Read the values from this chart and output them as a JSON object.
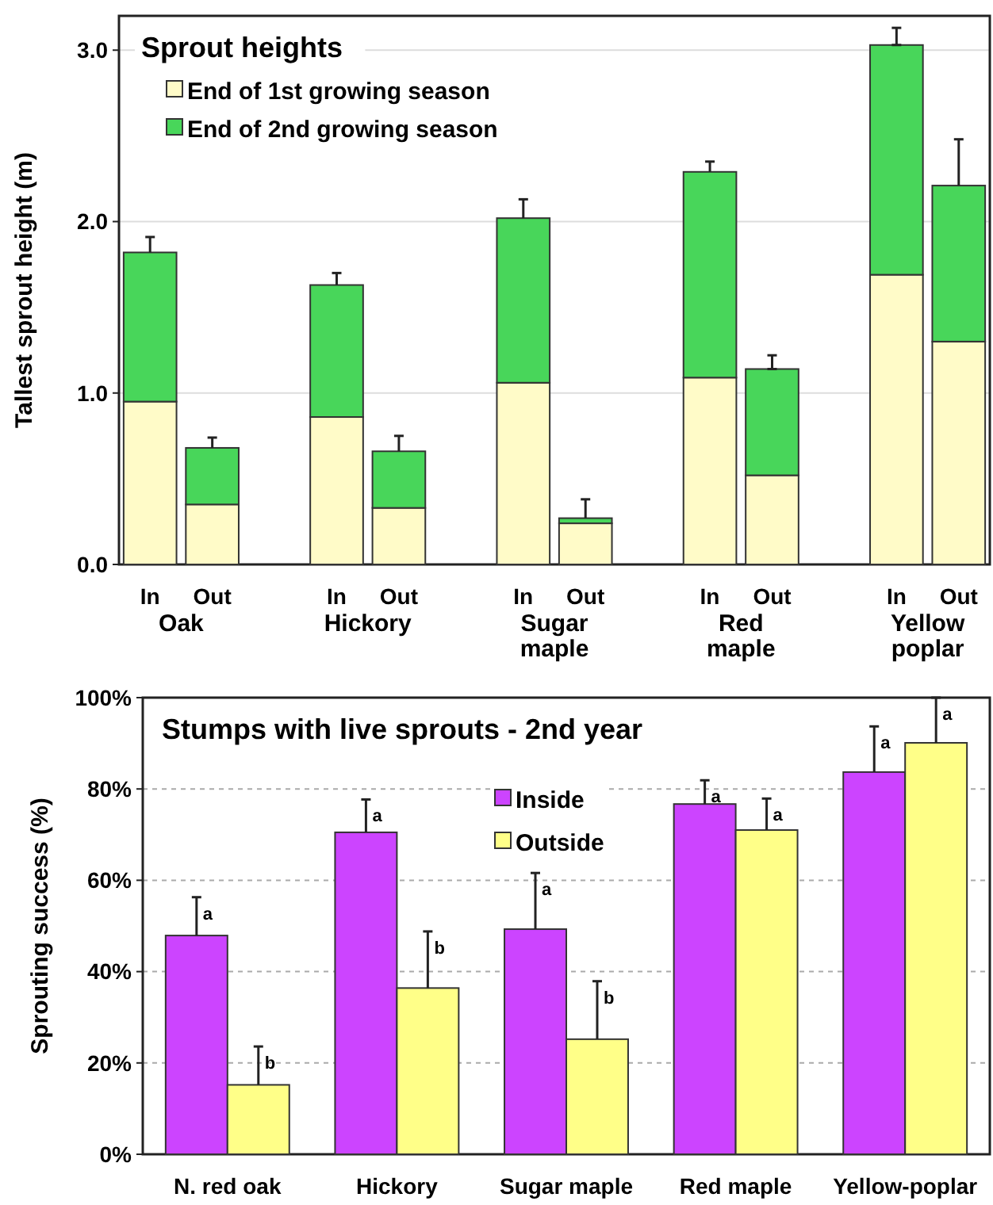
{
  "chart_data": [
    {
      "type": "bar",
      "title": "Sprout heights",
      "ylabel": "Tallest sprout height (m)",
      "stacked": true,
      "categories": [
        "In",
        "Out",
        null,
        "In",
        "Out",
        null,
        "In",
        "Out",
        null,
        "In",
        "Out",
        null,
        "In",
        "Out"
      ],
      "series": [
        {
          "name": "End of 1st growing season",
          "color": "#fffbc8",
          "values": [
            0.95,
            0.35,
            null,
            0.86,
            0.33,
            null,
            1.06,
            0.24,
            null,
            1.09,
            0.52,
            null,
            1.69,
            1.3
          ]
        },
        {
          "name": "End of 2nd growing season",
          "color": "#48d65a",
          "values": [
            0.87,
            0.33,
            null,
            0.77,
            0.33,
            null,
            0.96,
            0.03,
            null,
            1.2,
            0.62,
            null,
            1.34,
            0.91
          ],
          "errors": [
            [
              1.82,
              1.91
            ],
            [
              0.68,
              0.74
            ],
            null,
            [
              1.63,
              1.7
            ],
            [
              0.66,
              0.75
            ],
            null,
            [
              2.02,
              2.13
            ],
            [
              0.27,
              0.38
            ],
            null,
            [
              2.29,
              2.35
            ],
            [
              1.14,
              1.22
            ],
            null,
            [
              3.03,
              3.13
            ],
            [
              2.21,
              2.48
            ]
          ]
        }
      ],
      "annotations": [
        "Oak",
        "Hickory",
        "Sugar maple",
        "Red maple",
        "Yellow poplar"
      ],
      "ylim": [
        0,
        3.2
      ],
      "yticks": [
        {
          "value": 0,
          "label": "0.0"
        },
        {
          "value": 1,
          "label": "1.0"
        },
        {
          "value": 2,
          "label": "2.0"
        },
        {
          "value": 3,
          "label": "3.0"
        }
      ],
      "grid": "y",
      "legend": "top left"
    },
    {
      "type": "bar",
      "title": "Stumps with live sprouts - 2nd year",
      "ylabel": "Sprouting success (%)",
      "categories": [
        "N. red oak",
        "Hickory",
        "Sugar maple",
        "Red maple",
        "Yellow-poplar"
      ],
      "series": [
        {
          "name": "Inside",
          "color": "#cc44ff",
          "values": [
            47.9,
            70.5,
            49.3,
            76.7,
            83.7
          ],
          "errors": [
            [
              47.9,
              56.3
            ],
            [
              70.5,
              77.7
            ],
            [
              49.3,
              61.6
            ],
            [
              76.7,
              81.9
            ],
            [
              83.7,
              93.7
            ]
          ]
        },
        {
          "name": "Outside",
          "color": "#ffff88",
          "values": [
            15.2,
            36.4,
            25.2,
            71.0,
            90.1
          ],
          "errors": [
            [
              15.2,
              23.6
            ],
            [
              36.4,
              48.8
            ],
            [
              25.2,
              37.9
            ],
            [
              71.0,
              77.9
            ],
            [
              90.1,
              100
            ]
          ]
        }
      ],
      "annotations": [
        "a",
        "b",
        "a",
        "b",
        "a",
        "b",
        "a",
        "a",
        "a",
        "a"
      ],
      "ylim": [
        0,
        100
      ],
      "yticks": [
        {
          "value": 0,
          "label": "0%"
        },
        {
          "value": 20,
          "label": "20%"
        },
        {
          "value": 40,
          "label": "40%"
        },
        {
          "value": 60,
          "label": "60%"
        },
        {
          "value": 80,
          "label": "80%"
        },
        {
          "value": 100,
          "label": "100%"
        }
      ],
      "grid": "y",
      "legend": "top"
    }
  ]
}
